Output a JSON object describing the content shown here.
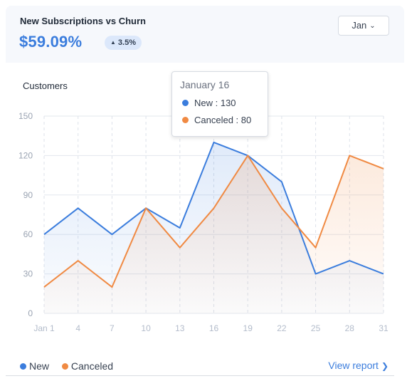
{
  "header": {
    "title": "New Subscriptions vs Churn",
    "amount": "$59.09%",
    "change": "3.5%",
    "month_select": "Jan"
  },
  "tooltip": {
    "title": "January 16",
    "rows": [
      {
        "label": "New : 130",
        "color": "#3b7ddd"
      },
      {
        "label": "Canceled : 80",
        "color": "#f08a43"
      }
    ]
  },
  "footer": {
    "view_report": "View report"
  },
  "colors": {
    "new": "#3b7ddd",
    "canceled": "#f08a43",
    "accent": "#3b7ddd"
  },
  "chart_data": {
    "type": "area",
    "title": "Customers",
    "x": [
      "Jan 1",
      "4",
      "7",
      "10",
      "13",
      "16",
      "19",
      "22",
      "25",
      "28",
      "31"
    ],
    "series": [
      {
        "name": "New",
        "values": [
          60,
          80,
          60,
          80,
          65,
          130,
          120,
          100,
          30,
          40,
          30
        ],
        "color": "#3b7ddd"
      },
      {
        "name": "Canceled",
        "values": [
          20,
          40,
          20,
          80,
          50,
          80,
          120,
          80,
          50,
          120,
          110
        ],
        "color": "#f08a43"
      }
    ],
    "yticks": [
      0,
      30,
      60,
      90,
      120,
      150
    ],
    "ylim": [
      0,
      150
    ],
    "grid": true,
    "legend": "bottom-left"
  }
}
